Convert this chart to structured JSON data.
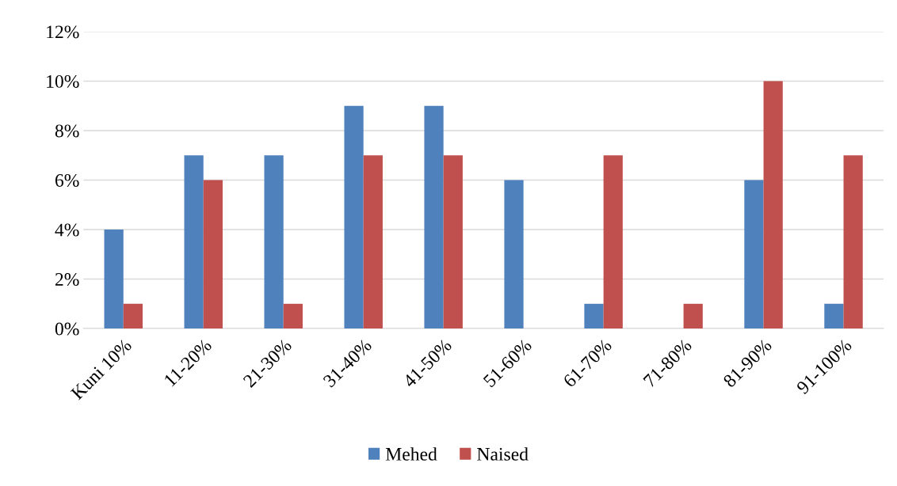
{
  "chart_data": {
    "type": "bar",
    "categories": [
      "Kuni 10%",
      "11-20%",
      "21-30%",
      "31-40%",
      "41-50%",
      "51-60%",
      "61-70%",
      "71-80%",
      "81-90%",
      "91-100%"
    ],
    "series": [
      {
        "name": "Mehed",
        "color": "#4f81bd",
        "values": [
          4,
          7,
          7,
          9,
          9,
          6,
          1,
          0,
          6,
          1
        ]
      },
      {
        "name": "Naised",
        "color": "#c0504d",
        "values": [
          1,
          6,
          1,
          7,
          7,
          0,
          7,
          1,
          10,
          7
        ]
      }
    ],
    "ylim": [
      0,
      12
    ],
    "yticks": [
      {
        "value": 0,
        "label": "0%"
      },
      {
        "value": 2,
        "label": "2%"
      },
      {
        "value": 4,
        "label": "4%"
      },
      {
        "value": 6,
        "label": "6%"
      },
      {
        "value": 8,
        "label": "8%"
      },
      {
        "value": 10,
        "label": "10%"
      },
      {
        "value": 12,
        "label": "12%"
      }
    ],
    "grid": "y",
    "legend": "bottom"
  }
}
